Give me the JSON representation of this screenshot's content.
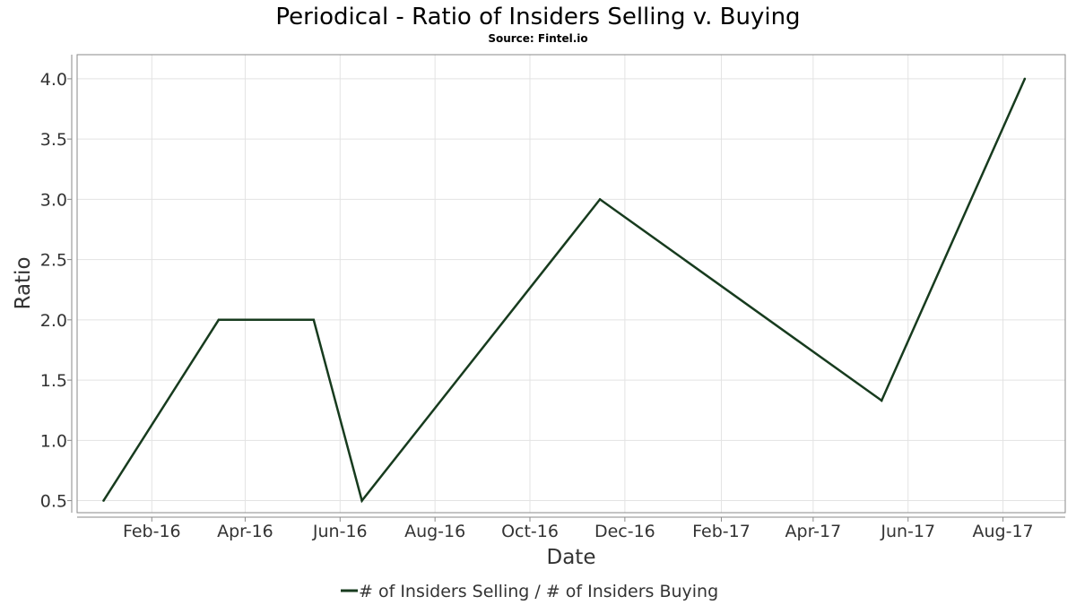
{
  "chart_data": {
    "type": "line",
    "title": "Periodical - Ratio of Insiders Selling v. Buying",
    "subtitle": "Source: Fintel.io",
    "xlabel": "Date",
    "ylabel": "Ratio",
    "x_ticks": [
      {
        "label": "Feb-16",
        "date": "2016-02-01"
      },
      {
        "label": "Apr-16",
        "date": "2016-04-01"
      },
      {
        "label": "Jun-16",
        "date": "2016-06-01"
      },
      {
        "label": "Aug-16",
        "date": "2016-08-01"
      },
      {
        "label": "Oct-16",
        "date": "2016-10-01"
      },
      {
        "label": "Dec-16",
        "date": "2016-12-01"
      },
      {
        "label": "Feb-17",
        "date": "2017-02-01"
      },
      {
        "label": "Apr-17",
        "date": "2017-04-01"
      },
      {
        "label": "Jun-17",
        "date": "2017-06-01"
      },
      {
        "label": "Aug-17",
        "date": "2017-08-01"
      }
    ],
    "y_ticks": [
      "0.5",
      "1.0",
      "1.5",
      "2.0",
      "2.5",
      "3.0",
      "3.5",
      "4.0"
    ],
    "xlim": [
      "2015-12-15",
      "2017-09-10"
    ],
    "ylim": [
      0.4,
      4.2
    ],
    "grid": true,
    "legend_position": "bottom",
    "series": [
      {
        "name": "# of Insiders Selling / # of Insiders Buying",
        "color": "#173b1e",
        "points": [
          {
            "date": "2016-01-01",
            "value": 0.5
          },
          {
            "date": "2016-03-15",
            "value": 2.0
          },
          {
            "date": "2016-05-15",
            "value": 2.0
          },
          {
            "date": "2016-06-15",
            "value": 0.5
          },
          {
            "date": "2016-11-15",
            "value": 3.0
          },
          {
            "date": "2017-05-15",
            "value": 1.33
          },
          {
            "date": "2017-08-15",
            "value": 4.0
          }
        ]
      }
    ]
  }
}
